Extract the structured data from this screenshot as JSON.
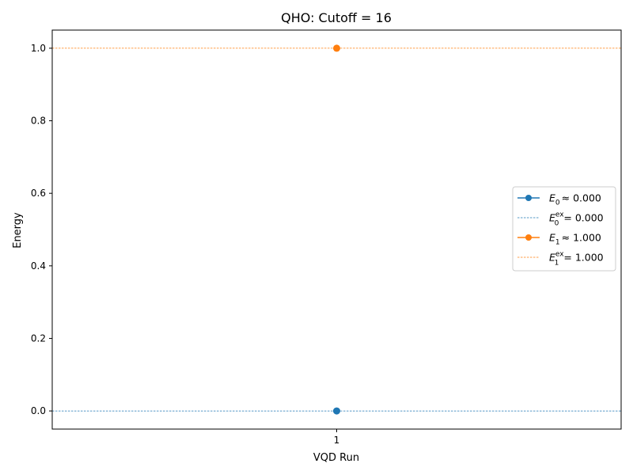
{
  "chart_data": {
    "type": "line",
    "title": "QHO: Cutoff = 16",
    "xlabel": "VQD Run",
    "ylabel": "Energy",
    "x": [
      1
    ],
    "x_ticks": [
      "1"
    ],
    "y_ticks": [
      "0.0",
      "0.2",
      "0.4",
      "0.6",
      "0.8",
      "1.0"
    ],
    "ylim": [
      -0.05,
      1.05
    ],
    "grid": false,
    "legend_position": "center-right",
    "series": [
      {
        "key": "e0",
        "legend_sub": "0",
        "legend_value": "0.000",
        "values": [
          0.0
        ],
        "color": "#1f77b4",
        "marker": "circle"
      },
      {
        "key": "e1",
        "legend_sub": "1",
        "legend_value": "1.000",
        "values": [
          1.0
        ],
        "color": "#ff7f0e",
        "marker": "circle"
      }
    ],
    "reference_lines": [
      {
        "key": "e0_ex",
        "legend_sub": "0",
        "legend_sup": "ex",
        "legend_value": "0.000",
        "y": 0.0,
        "color": "#1f77b4",
        "style": "dashed"
      },
      {
        "key": "e1_ex",
        "legend_sub": "1",
        "legend_sup": "ex",
        "legend_value": "1.000",
        "y": 1.0,
        "color": "#ff7f0e",
        "style": "dashed"
      }
    ]
  }
}
